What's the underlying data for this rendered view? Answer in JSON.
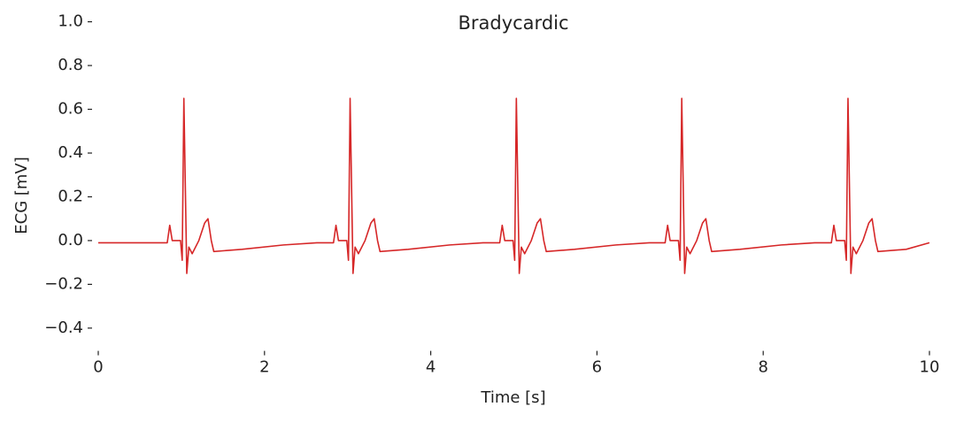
{
  "chart_data": {
    "type": "line",
    "title": "Bradycardic",
    "x_label": "Time [s]",
    "y_label": "ECG [mV]",
    "xlim": [
      0,
      10
    ],
    "ylim": [
      -0.5,
      1.0
    ],
    "xticks": [
      0,
      2,
      4,
      6,
      8,
      10
    ],
    "yticks": [
      {
        "value": -0.4,
        "label": "−0.4"
      },
      {
        "value": -0.2,
        "label": "−0.2"
      },
      {
        "value": 0,
        "label": "0.0"
      },
      {
        "value": 0.2,
        "label": "0.2"
      },
      {
        "value": 0.4,
        "label": "0.4"
      },
      {
        "value": 0.6,
        "label": "0.6"
      },
      {
        "value": 0.8,
        "label": "0.8"
      },
      {
        "value": 1.0,
        "label": "1.0"
      }
    ],
    "grid": false,
    "series": [
      {
        "color": "#d62728",
        "x": [
          0,
          0.5,
          0.83,
          0.86,
          0.89,
          0.99,
          1.01,
          1.03,
          1.065,
          1.09,
          1.13,
          1.21,
          1.28,
          1.32,
          1.36,
          1.39,
          1.73,
          2.23,
          2.63,
          2.83,
          2.86,
          2.89,
          2.99,
          3.01,
          3.03,
          3.065,
          3.09,
          3.13,
          3.21,
          3.28,
          3.32,
          3.36,
          3.39,
          3.73,
          4.23,
          4.63,
          4.83,
          4.86,
          4.89,
          4.99,
          5.01,
          5.03,
          5.065,
          5.09,
          5.13,
          5.21,
          5.28,
          5.32,
          5.36,
          5.39,
          5.73,
          6.23,
          6.63,
          6.82,
          6.85,
          6.88,
          6.98,
          7.0,
          7.02,
          7.055,
          7.08,
          7.12,
          7.2,
          7.27,
          7.31,
          7.35,
          7.38,
          7.72,
          8.22,
          8.62,
          8.82,
          8.85,
          8.88,
          8.98,
          9.0,
          9.02,
          9.055,
          9.08,
          9.12,
          9.2,
          9.27,
          9.31,
          9.35,
          9.38,
          9.72,
          10.0
        ],
        "values": [
          -0.01,
          -0.01,
          -0.01,
          0.07,
          0,
          0,
          -0.09,
          0.65,
          -0.15,
          -0.03,
          -0.06,
          0,
          0.08,
          0.1,
          0,
          -0.05,
          -0.04,
          -0.02,
          -0.01,
          -0.01,
          0.07,
          0,
          0,
          -0.09,
          0.65,
          -0.15,
          -0.03,
          -0.06,
          0,
          0.08,
          0.1,
          0,
          -0.05,
          -0.04,
          -0.02,
          -0.01,
          -0.01,
          0.07,
          0,
          0,
          -0.09,
          0.65,
          -0.15,
          -0.03,
          -0.06,
          0,
          0.08,
          0.1,
          0,
          -0.05,
          -0.04,
          -0.02,
          -0.01,
          -0.01,
          0.07,
          0,
          0,
          -0.09,
          0.65,
          -0.15,
          -0.03,
          -0.06,
          0,
          0.08,
          0.1,
          0,
          -0.05,
          -0.04,
          -0.02,
          -0.01,
          -0.01,
          0.07,
          0,
          0,
          -0.09,
          0.65,
          -0.15,
          -0.03,
          -0.06,
          0,
          0.08,
          0.1,
          0,
          -0.05,
          -0.04,
          -0.01
        ]
      }
    ]
  }
}
